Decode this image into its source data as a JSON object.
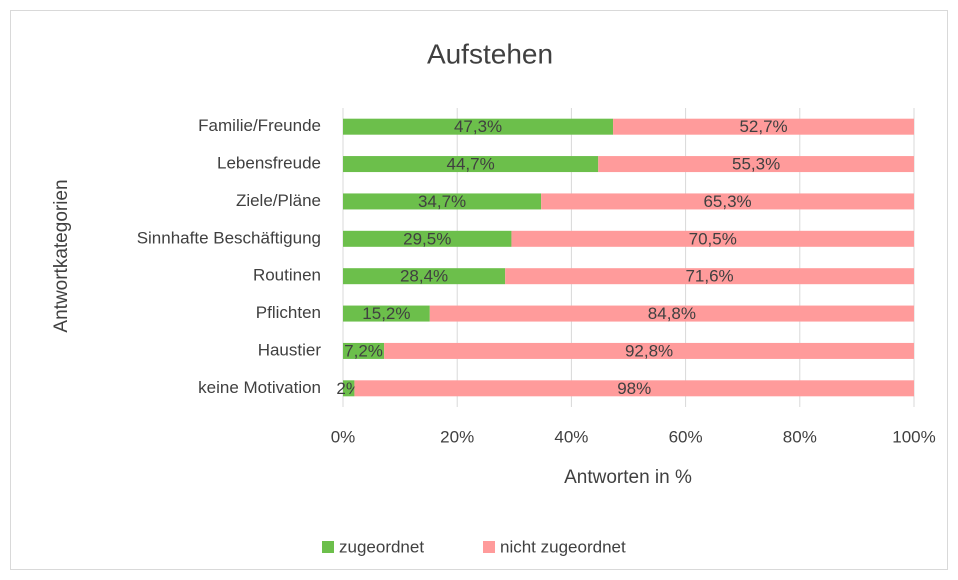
{
  "chart_data": {
    "type": "stacked-bar-horizontal",
    "title": "Aufstehen",
    "x_label": "Antworten in %",
    "y_label": "Antwortkategorien",
    "categories": [
      "Familie/Freunde",
      "Lebensfreude",
      "Ziele/Pläne",
      "Sinnhafte Beschäftigung",
      "Routinen",
      "Pflichten",
      "Haustier",
      "keine Motivation"
    ],
    "series": [
      {
        "name": "zugeordnet",
        "color": "#6cbf4b",
        "values": [
          47.3,
          44.7,
          34.7,
          29.5,
          28.4,
          15.2,
          7.2,
          2
        ],
        "value_labels": [
          "47,3%",
          "44,7%",
          "34,7%",
          "29,5%",
          "28,4%",
          "15,2%",
          "7,2%",
          "2%"
        ]
      },
      {
        "name": "nicht zugeordnet",
        "color": "#ff9b9b",
        "values": [
          52.7,
          55.3,
          65.3,
          70.5,
          71.6,
          84.8,
          92.8,
          98
        ],
        "value_labels": [
          "52,7%",
          "55,3%",
          "65,3%",
          "70,5%",
          "71,6%",
          "84,8%",
          "92,8%",
          "98%"
        ]
      }
    ],
    "xlim": [
      0,
      100
    ],
    "xticks": [
      {
        "value": 0,
        "label": "0%"
      },
      {
        "value": 20,
        "label": "20%"
      },
      {
        "value": 40,
        "label": "40%"
      },
      {
        "value": 60,
        "label": "60%"
      },
      {
        "value": 80,
        "label": "80%"
      },
      {
        "value": 100,
        "label": "100%"
      }
    ],
    "grid": true,
    "legend": "bottom"
  }
}
